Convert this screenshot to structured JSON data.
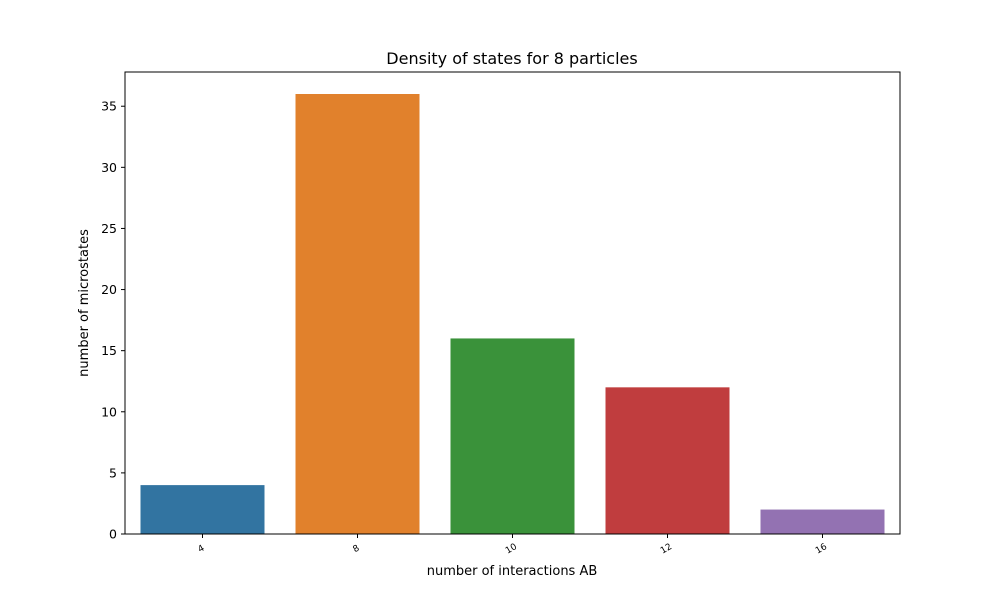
{
  "chart_data": {
    "type": "bar",
    "title": "Density of states for 8 particles",
    "xlabel": "number of interactions AB",
    "ylabel": "number of microstates",
    "categories": [
      "4",
      "8",
      "10",
      "12",
      "16"
    ],
    "values": [
      4,
      36,
      16,
      12,
      2
    ],
    "colors": [
      "#3274a1",
      "#e1812c",
      "#3a923a",
      "#c03d3e",
      "#9372b2"
    ],
    "ylim": [
      0,
      37.8
    ],
    "yticks": [
      0,
      5,
      10,
      15,
      20,
      25,
      30,
      35
    ],
    "grid": false,
    "legend": "none"
  }
}
